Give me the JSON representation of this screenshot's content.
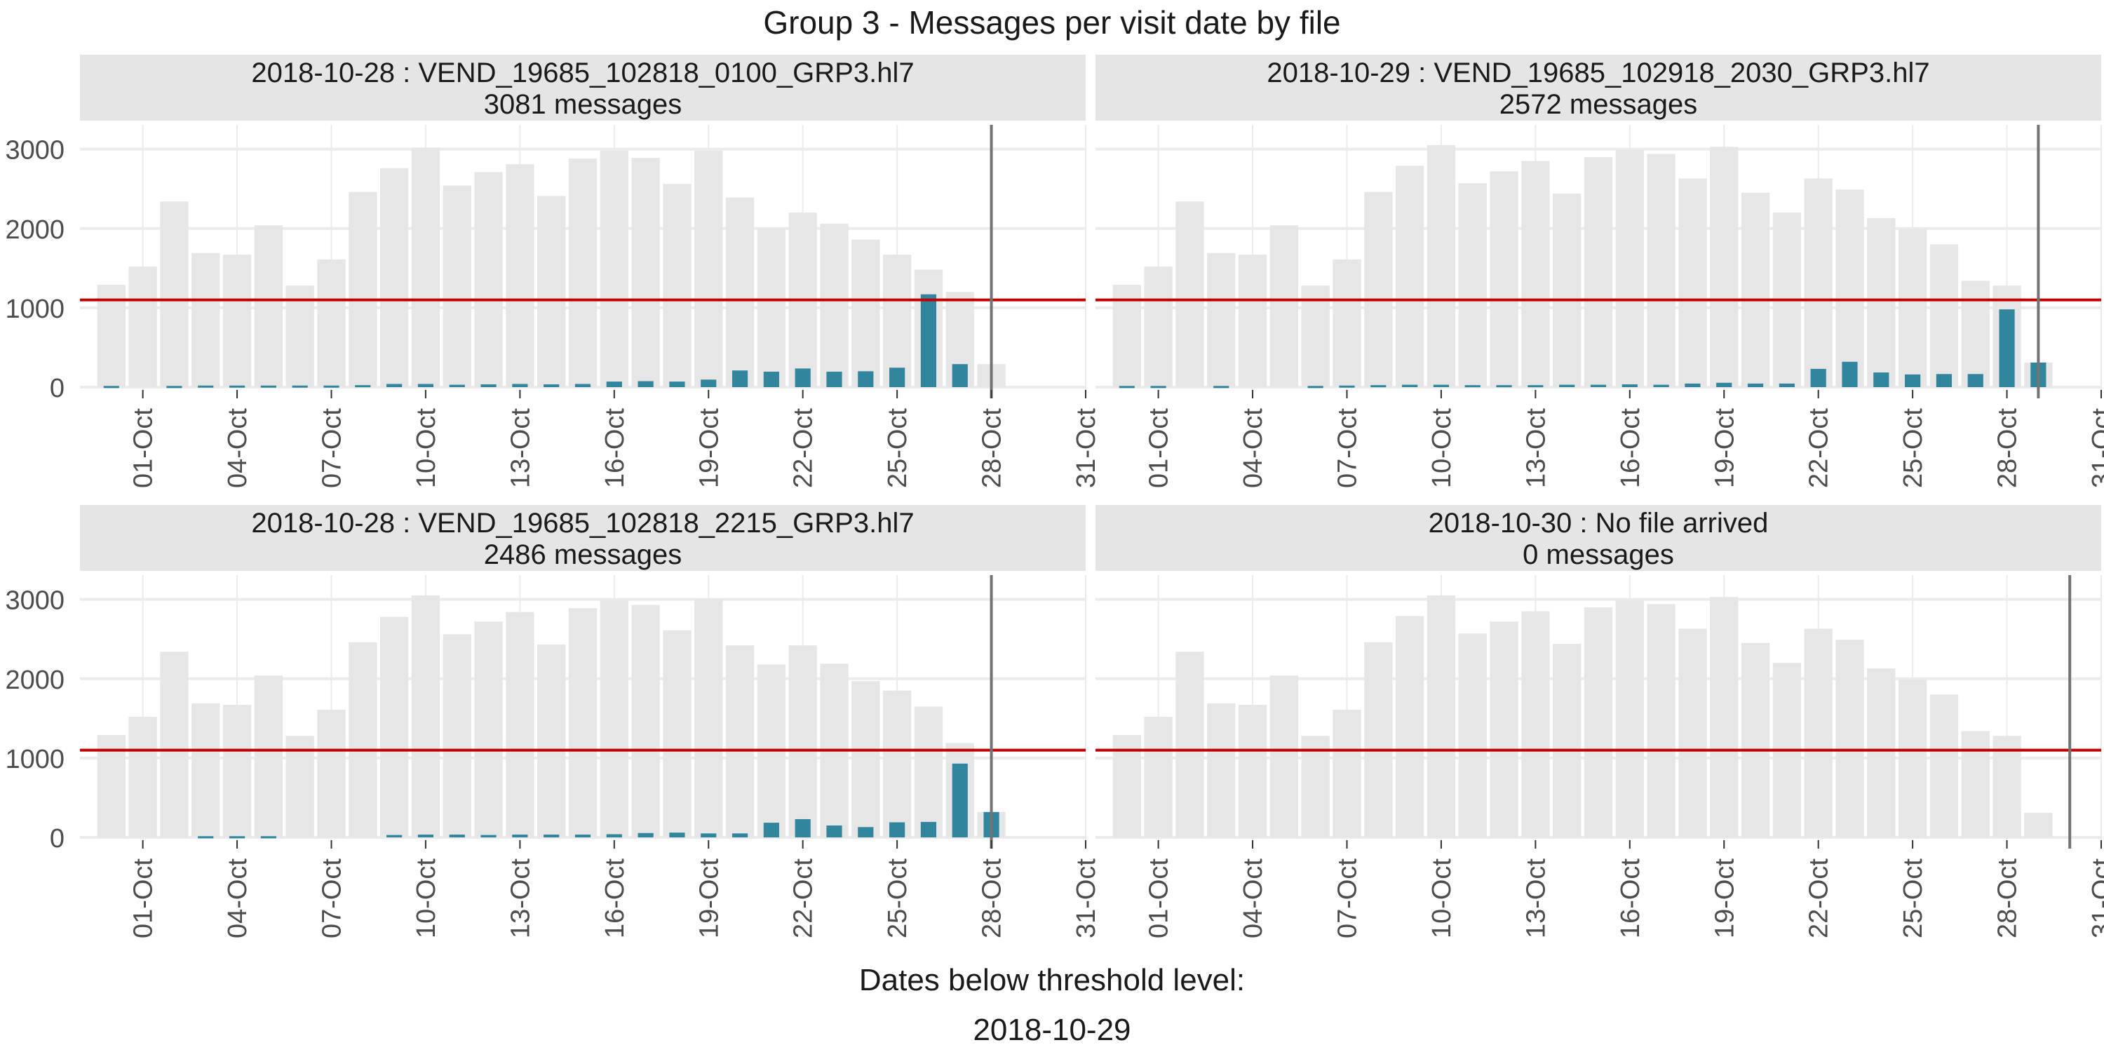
{
  "chart_data": {
    "type": "bar",
    "title": "Group 3 - Messages per visit date by file",
    "threshold": 1100,
    "ylim": [
      0,
      3200
    ],
    "yticks": [
      0,
      1000,
      2000,
      3000
    ],
    "x_start": "2018-09-29",
    "x_end": "2018-10-31",
    "xticks": [
      "01-Oct",
      "04-Oct",
      "07-Oct",
      "10-Oct",
      "13-Oct",
      "16-Oct",
      "19-Oct",
      "22-Oct",
      "25-Oct",
      "28-Oct",
      "31-Oct"
    ],
    "colors": {
      "background_bar": "#e6e6e6",
      "file_bar": "#31859c",
      "threshold": "#c00000",
      "marker": "#737373",
      "strip": "#e5e5e5",
      "grid": "#ebebeb"
    },
    "caption_lines": [
      "Dates below threshold level:",
      "2018-10-29"
    ],
    "panels": [
      {
        "strip_line1": "2018-10-28 : VEND_19685_102818_0100_GRP3.hl7",
        "strip_line2": "3081 messages",
        "marker_date": "2018-10-28",
        "total": {
          "dates": [
            "2018-09-30",
            "2018-10-01",
            "2018-10-02",
            "2018-10-03",
            "2018-10-04",
            "2018-10-05",
            "2018-10-06",
            "2018-10-07",
            "2018-10-08",
            "2018-10-09",
            "2018-10-10",
            "2018-10-11",
            "2018-10-12",
            "2018-10-13",
            "2018-10-14",
            "2018-10-15",
            "2018-10-16",
            "2018-10-17",
            "2018-10-18",
            "2018-10-19",
            "2018-10-20",
            "2018-10-21",
            "2018-10-22",
            "2018-10-23",
            "2018-10-24",
            "2018-10-25",
            "2018-10-26",
            "2018-10-27",
            "2018-10-28"
          ],
          "values": [
            1290,
            1520,
            2340,
            1690,
            1670,
            2040,
            1280,
            1610,
            2460,
            2760,
            3020,
            2540,
            2710,
            2810,
            2410,
            2880,
            2980,
            2890,
            2560,
            2980,
            2390,
            2000,
            2200,
            2060,
            1860,
            1670,
            1480,
            1200,
            290
          ]
        },
        "file": {
          "dates": [
            "2018-09-30",
            "2018-10-02",
            "2018-10-03",
            "2018-10-04",
            "2018-10-05",
            "2018-10-06",
            "2018-10-07",
            "2018-10-08",
            "2018-10-09",
            "2018-10-10",
            "2018-10-11",
            "2018-10-12",
            "2018-10-13",
            "2018-10-14",
            "2018-10-15",
            "2018-10-16",
            "2018-10-17",
            "2018-10-18",
            "2018-10-19",
            "2018-10-20",
            "2018-10-21",
            "2018-10-22",
            "2018-10-23",
            "2018-10-24",
            "2018-10-25",
            "2018-10-26",
            "2018-10-27"
          ],
          "values": [
            15,
            15,
            20,
            20,
            20,
            20,
            20,
            25,
            40,
            40,
            30,
            35,
            40,
            35,
            40,
            70,
            75,
            70,
            95,
            210,
            195,
            235,
            195,
            200,
            245,
            1170,
            290
          ]
        }
      },
      {
        "strip_line1": "2018-10-29 : VEND_19685_102918_2030_GRP3.hl7",
        "strip_line2": "2572 messages",
        "marker_date": "2018-10-29",
        "total": {
          "dates": [
            "2018-09-30",
            "2018-10-01",
            "2018-10-02",
            "2018-10-03",
            "2018-10-04",
            "2018-10-05",
            "2018-10-06",
            "2018-10-07",
            "2018-10-08",
            "2018-10-09",
            "2018-10-10",
            "2018-10-11",
            "2018-10-12",
            "2018-10-13",
            "2018-10-14",
            "2018-10-15",
            "2018-10-16",
            "2018-10-17",
            "2018-10-18",
            "2018-10-19",
            "2018-10-20",
            "2018-10-21",
            "2018-10-22",
            "2018-10-23",
            "2018-10-24",
            "2018-10-25",
            "2018-10-26",
            "2018-10-27",
            "2018-10-28",
            "2018-10-29"
          ],
          "values": [
            1290,
            1520,
            2340,
            1690,
            1670,
            2040,
            1280,
            1610,
            2460,
            2790,
            3050,
            2570,
            2720,
            2850,
            2440,
            2900,
            2990,
            2940,
            2630,
            3030,
            2450,
            2200,
            2630,
            2490,
            2130,
            1990,
            1800,
            1340,
            1280,
            310
          ]
        },
        "file": {
          "dates": [
            "2018-09-30",
            "2018-10-01",
            "2018-10-03",
            "2018-10-06",
            "2018-10-07",
            "2018-10-08",
            "2018-10-09",
            "2018-10-10",
            "2018-10-11",
            "2018-10-12",
            "2018-10-13",
            "2018-10-14",
            "2018-10-15",
            "2018-10-16",
            "2018-10-17",
            "2018-10-18",
            "2018-10-19",
            "2018-10-20",
            "2018-10-21",
            "2018-10-22",
            "2018-10-23",
            "2018-10-24",
            "2018-10-25",
            "2018-10-26",
            "2018-10-27",
            "2018-10-28",
            "2018-10-29"
          ],
          "values": [
            15,
            15,
            15,
            15,
            20,
            25,
            30,
            30,
            25,
            25,
            25,
            30,
            30,
            35,
            30,
            45,
            55,
            45,
            45,
            230,
            320,
            185,
            160,
            165,
            165,
            980,
            310
          ]
        }
      },
      {
        "strip_line1": "2018-10-28 : VEND_19685_102818_2215_GRP3.hl7",
        "strip_line2": "2486 messages",
        "marker_date": "2018-10-28",
        "total": {
          "dates": [
            "2018-09-30",
            "2018-10-01",
            "2018-10-02",
            "2018-10-03",
            "2018-10-04",
            "2018-10-05",
            "2018-10-06",
            "2018-10-07",
            "2018-10-08",
            "2018-10-09",
            "2018-10-10",
            "2018-10-11",
            "2018-10-12",
            "2018-10-13",
            "2018-10-14",
            "2018-10-15",
            "2018-10-16",
            "2018-10-17",
            "2018-10-18",
            "2018-10-19",
            "2018-10-20",
            "2018-10-21",
            "2018-10-22",
            "2018-10-23",
            "2018-10-24",
            "2018-10-25",
            "2018-10-26",
            "2018-10-27",
            "2018-10-28"
          ],
          "values": [
            1290,
            1520,
            2340,
            1690,
            1670,
            2040,
            1280,
            1610,
            2460,
            2780,
            3050,
            2560,
            2720,
            2840,
            2430,
            2890,
            2990,
            2930,
            2610,
            3000,
            2420,
            2180,
            2420,
            2190,
            1970,
            1850,
            1650,
            1190,
            320
          ]
        },
        "file": {
          "dates": [
            "2018-10-03",
            "2018-10-04",
            "2018-10-05",
            "2018-10-09",
            "2018-10-10",
            "2018-10-11",
            "2018-10-12",
            "2018-10-13",
            "2018-10-14",
            "2018-10-15",
            "2018-10-16",
            "2018-10-17",
            "2018-10-18",
            "2018-10-19",
            "2018-10-20",
            "2018-10-21",
            "2018-10-22",
            "2018-10-23",
            "2018-10-24",
            "2018-10-25",
            "2018-10-26",
            "2018-10-27",
            "2018-10-28"
          ],
          "values": [
            15,
            15,
            15,
            30,
            35,
            35,
            30,
            35,
            35,
            35,
            40,
            55,
            60,
            50,
            50,
            185,
            230,
            150,
            130,
            190,
            195,
            930,
            320
          ]
        }
      },
      {
        "strip_line1": "2018-10-30 : No file arrived",
        "strip_line2": "0 messages",
        "marker_date": "2018-10-30",
        "total": {
          "dates": [
            "2018-09-30",
            "2018-10-01",
            "2018-10-02",
            "2018-10-03",
            "2018-10-04",
            "2018-10-05",
            "2018-10-06",
            "2018-10-07",
            "2018-10-08",
            "2018-10-09",
            "2018-10-10",
            "2018-10-11",
            "2018-10-12",
            "2018-10-13",
            "2018-10-14",
            "2018-10-15",
            "2018-10-16",
            "2018-10-17",
            "2018-10-18",
            "2018-10-19",
            "2018-10-20",
            "2018-10-21",
            "2018-10-22",
            "2018-10-23",
            "2018-10-24",
            "2018-10-25",
            "2018-10-26",
            "2018-10-27",
            "2018-10-28",
            "2018-10-29"
          ],
          "values": [
            1290,
            1520,
            2340,
            1690,
            1670,
            2040,
            1280,
            1610,
            2460,
            2790,
            3050,
            2570,
            2720,
            2850,
            2440,
            2900,
            2990,
            2940,
            2630,
            3030,
            2450,
            2200,
            2630,
            2490,
            2130,
            1990,
            1800,
            1340,
            1280,
            310
          ]
        },
        "file": {
          "dates": [],
          "values": []
        }
      }
    ]
  }
}
